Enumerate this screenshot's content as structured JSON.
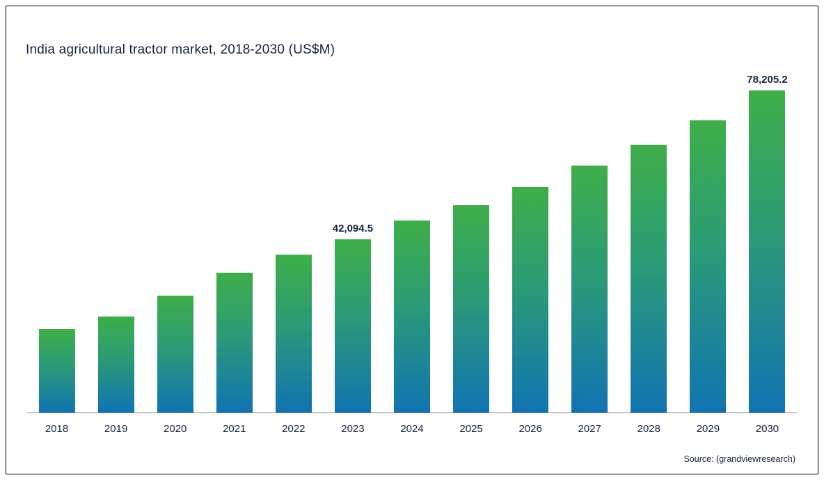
{
  "title": "India agricultural tractor market, 2018-2030 (US$M)",
  "source": "Source: (grandviewresearch)",
  "colors": {
    "bar_gradient_top": "#3fae49",
    "bar_gradient_bottom": "#1173b2",
    "text": "#16213e",
    "axis_line": "#7f7f7f"
  },
  "chart_data": {
    "type": "bar",
    "title": "India agricultural tractor market, 2018-2030 (US$M)",
    "categories": [
      "2018",
      "2019",
      "2020",
      "2021",
      "2022",
      "2023",
      "2024",
      "2025",
      "2026",
      "2027",
      "2028",
      "2029",
      "2030"
    ],
    "values": [
      20250,
      23300,
      28350,
      33900,
      38300,
      42094.5,
      46550,
      50300,
      54650,
      59900,
      65100,
      71000,
      78205.2
    ],
    "value_labels": [
      "",
      "",
      "",
      "",
      "",
      "42,094.5",
      "",
      "",
      "",
      "",
      "",
      "",
      "78,205.2"
    ],
    "xlabel": "",
    "ylabel": "",
    "ylim": [
      0,
      78205.2
    ],
    "grid": false,
    "legend": false,
    "source_note": "Source: (grandviewresearch)"
  }
}
